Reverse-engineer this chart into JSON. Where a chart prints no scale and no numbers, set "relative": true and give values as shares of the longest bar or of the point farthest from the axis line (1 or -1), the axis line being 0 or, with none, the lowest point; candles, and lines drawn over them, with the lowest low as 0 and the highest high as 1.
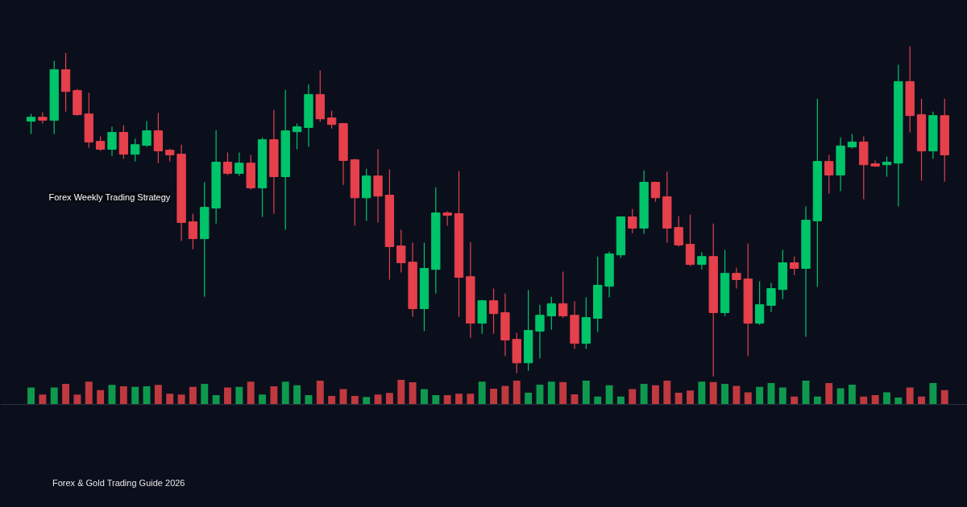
{
  "chart_data": [
    {
      "type": "candlestick",
      "relative": true,
      "title": "Forex Weekly Trading Strategy",
      "subtitle": "Forex & Gold Trading Guide 2026",
      "categories": [
        null,
        null,
        null,
        null,
        null,
        null,
        null,
        null,
        null,
        null,
        null,
        null,
        null,
        null,
        null,
        null,
        null,
        null,
        null,
        null,
        null,
        null,
        null,
        null,
        null,
        null,
        null,
        null,
        null,
        null,
        null,
        null,
        null,
        null,
        null,
        null,
        null,
        null,
        null,
        null,
        null,
        null,
        null,
        null,
        null,
        null,
        null,
        null,
        null,
        null,
        null,
        null,
        null,
        null,
        null,
        null,
        null,
        null,
        null,
        null,
        null,
        null,
        null,
        null,
        null,
        null,
        null,
        null,
        null,
        null,
        null,
        null,
        null,
        null,
        null,
        null,
        null,
        null,
        null,
        null
      ],
      "ohlc": [
        [
          0.773,
          0.795,
          0.734,
          0.785
        ],
        [
          0.785,
          0.8,
          0.766,
          0.776
        ],
        [
          0.776,
          0.956,
          0.734,
          0.929
        ],
        [
          0.929,
          0.98,
          0.802,
          0.863
        ],
        [
          0.866,
          0.871,
          0.79,
          0.793
        ],
        [
          0.795,
          0.859,
          0.693,
          0.71
        ],
        [
          0.712,
          0.727,
          0.683,
          0.688
        ],
        [
          0.688,
          0.756,
          0.668,
          0.739
        ],
        [
          0.739,
          0.761,
          0.659,
          0.673
        ],
        [
          0.673,
          0.72,
          0.651,
          0.702
        ],
        [
          0.7,
          0.773,
          0.695,
          0.744
        ],
        [
          0.744,
          0.798,
          0.646,
          0.683
        ],
        [
          0.685,
          0.69,
          0.651,
          0.671
        ],
        [
          0.673,
          0.702,
          0.41,
          0.466
        ],
        [
          0.468,
          0.493,
          0.385,
          0.417
        ],
        [
          0.417,
          0.588,
          0.241,
          0.512
        ],
        [
          0.51,
          0.746,
          0.463,
          0.649
        ],
        [
          0.649,
          0.678,
          0.61,
          0.615
        ],
        [
          0.615,
          0.678,
          0.607,
          0.646
        ],
        [
          0.646,
          0.671,
          0.566,
          0.571
        ],
        [
          0.571,
          0.724,
          0.483,
          0.717
        ],
        [
          0.717,
          0.807,
          0.493,
          0.605
        ],
        [
          0.605,
          0.868,
          0.444,
          0.744
        ],
        [
          0.741,
          0.766,
          0.688,
          0.756
        ],
        [
          0.754,
          0.885,
          0.695,
          0.854
        ],
        [
          0.854,
          0.927,
          0.771,
          0.78
        ],
        [
          0.783,
          0.805,
          0.751,
          0.763
        ],
        [
          0.766,
          0.768,
          0.58,
          0.654
        ],
        [
          0.656,
          0.659,
          0.456,
          0.541
        ],
        [
          0.541,
          0.629,
          0.471,
          0.607
        ],
        [
          0.607,
          0.688,
          0.466,
          0.546
        ],
        [
          0.549,
          0.627,
          0.293,
          0.393
        ],
        [
          0.395,
          0.444,
          0.315,
          0.344
        ],
        [
          0.346,
          0.405,
          0.18,
          0.205
        ],
        [
          0.205,
          0.405,
          0.137,
          0.327
        ],
        [
          0.324,
          0.573,
          0.251,
          0.495
        ],
        [
          0.495,
          0.5,
          0.456,
          0.488
        ],
        [
          0.493,
          0.622,
          0.18,
          0.3
        ],
        [
          0.302,
          0.407,
          0.117,
          0.161
        ],
        [
          0.161,
          0.232,
          0.129,
          0.229
        ],
        [
          0.229,
          0.266,
          0.129,
          0.19
        ],
        [
          0.193,
          0.251,
          0.061,
          0.11
        ],
        [
          0.112,
          0.132,
          0.01,
          0.041
        ],
        [
          0.041,
          0.261,
          0.017,
          0.139
        ],
        [
          0.137,
          0.217,
          0.054,
          0.185
        ],
        [
          0.183,
          0.241,
          0.141,
          0.22
        ],
        [
          0.22,
          0.317,
          0.178,
          0.183
        ],
        [
          0.185,
          0.227,
          0.083,
          0.1
        ],
        [
          0.1,
          0.239,
          0.083,
          0.178
        ],
        [
          0.176,
          0.363,
          0.134,
          0.276
        ],
        [
          0.273,
          0.378,
          0.239,
          0.371
        ],
        [
          0.368,
          0.485,
          0.359,
          0.483
        ],
        [
          0.483,
          0.507,
          0.434,
          0.449
        ],
        [
          0.449,
          0.624,
          0.432,
          0.588
        ],
        [
          0.588,
          0.59,
          0.529,
          0.541
        ],
        [
          0.544,
          0.62,
          0.405,
          0.449
        ],
        [
          0.451,
          0.485,
          0.393,
          0.398
        ],
        [
          0.4,
          0.49,
          0.334,
          0.339
        ],
        [
          0.339,
          0.376,
          0.324,
          0.363
        ],
        [
          0.363,
          0.463,
          0.0,
          0.193
        ],
        [
          0.193,
          0.383,
          0.183,
          0.312
        ],
        [
          0.312,
          0.329,
          0.266,
          0.293
        ],
        [
          0.295,
          0.402,
          0.061,
          0.161
        ],
        [
          0.161,
          0.288,
          0.156,
          0.217
        ],
        [
          0.215,
          0.283,
          0.195,
          0.266
        ],
        [
          0.263,
          0.383,
          0.234,
          0.344
        ],
        [
          0.344,
          0.363,
          0.307,
          0.327
        ],
        [
          0.327,
          0.515,
          0.12,
          0.473
        ],
        [
          0.471,
          0.841,
          0.271,
          0.651
        ],
        [
          0.651,
          0.671,
          0.554,
          0.61
        ],
        [
          0.61,
          0.724,
          0.561,
          0.698
        ],
        [
          0.695,
          0.734,
          0.69,
          0.71
        ],
        [
          0.71,
          0.727,
          0.537,
          0.641
        ],
        [
          0.644,
          0.654,
          0.634,
          0.637
        ],
        [
          0.641,
          0.666,
          0.605,
          0.649
        ],
        [
          0.646,
          0.944,
          0.515,
          0.893
        ],
        [
          0.893,
          1.0,
          0.739,
          0.79
        ],
        [
          0.793,
          0.841,
          0.593,
          0.683
        ],
        [
          0.683,
          0.802,
          0.659,
          0.79
        ],
        [
          0.79,
          0.841,
          0.59,
          0.671
        ]
      ],
      "colors": [
        "#00c46a",
        "#e5404b",
        "#00c46a",
        "#e5404b",
        "#e5404b",
        "#e5404b",
        "#e5404b",
        "#00c46a",
        "#e5404b",
        "#00c46a",
        "#00c46a",
        "#e5404b",
        "#e5404b",
        "#e5404b",
        "#e5404b",
        "#00c46a",
        "#00c46a",
        "#e5404b",
        "#00c46a",
        "#e5404b",
        "#00c46a",
        "#e5404b",
        "#00c46a",
        "#00c46a",
        "#00c46a",
        "#e5404b",
        "#e5404b",
        "#e5404b",
        "#e5404b",
        "#00c46a",
        "#e5404b",
        "#e5404b",
        "#e5404b",
        "#e5404b",
        "#00c46a",
        "#00c46a",
        "#e5404b",
        "#e5404b",
        "#e5404b",
        "#00c46a",
        "#e5404b",
        "#e5404b",
        "#e5404b",
        "#00c46a",
        "#00c46a",
        "#00c46a",
        "#e5404b",
        "#e5404b",
        "#00c46a",
        "#00c46a",
        "#00c46a",
        "#00c46a",
        "#e5404b",
        "#00c46a",
        "#e5404b",
        "#e5404b",
        "#e5404b",
        "#e5404b",
        "#00c46a",
        "#e5404b",
        "#00c46a",
        "#e5404b",
        "#e5404b",
        "#00c46a",
        "#00c46a",
        "#00c46a",
        "#e5404b",
        "#00c46a",
        "#00c46a",
        "#e5404b",
        "#00c46a",
        "#00c46a",
        "#e5404b",
        "#e5404b",
        "#00c46a",
        "#00c46a",
        "#e5404b",
        "#e5404b",
        "#00c46a",
        "#e5404b"
      ]
    },
    {
      "type": "bar",
      "relative": true,
      "categories": [
        null,
        null,
        null,
        null,
        null,
        null,
        null,
        null,
        null,
        null,
        null,
        null,
        null,
        null,
        null,
        null,
        null,
        null,
        null,
        null,
        null,
        null,
        null,
        null,
        null,
        null,
        null,
        null,
        null,
        null,
        null,
        null,
        null,
        null,
        null,
        null,
        null,
        null,
        null,
        null,
        null,
        null,
        null,
        null,
        null,
        null,
        null,
        null,
        null,
        null,
        null,
        null,
        null,
        null,
        null,
        null,
        null,
        null,
        null,
        null,
        null,
        null,
        null,
        null,
        null,
        null,
        null,
        null,
        null,
        null,
        null,
        null,
        null,
        null,
        null,
        null,
        null,
        null,
        null,
        null
      ],
      "values": [
        0.69,
        0.41,
        0.69,
        0.84,
        0.41,
        0.93,
        0.59,
        0.8,
        0.74,
        0.72,
        0.74,
        0.8,
        0.44,
        0.41,
        0.72,
        0.84,
        0.38,
        0.69,
        0.72,
        0.93,
        0.41,
        0.74,
        0.93,
        0.78,
        0.38,
        0.97,
        0.35,
        0.63,
        0.35,
        0.31,
        0.41,
        0.47,
        1,
        0.9,
        0.63,
        0.38,
        0.38,
        0.44,
        0.44,
        0.93,
        0.64,
        0.76,
        0.97,
        0.48,
        0.81,
        0.93,
        0.91,
        0.42,
        0.97,
        0.33,
        0.78,
        0.33,
        0.63,
        0.84,
        0.78,
        0.97,
        0.48,
        0.57,
        0.93,
        0.91,
        0.84,
        0.76,
        0.5,
        0.72,
        0.87,
        0.69,
        0.33,
        0.97,
        0.33,
        0.87,
        0.66,
        0.81,
        0.33,
        0.38,
        0.5,
        0.29,
        0.69,
        0.33,
        0.87,
        0.59
      ],
      "colors": [
        "#0e9a4e",
        "#c0393f",
        "#0e9a4e",
        "#c0393f",
        "#c0393f",
        "#c0393f",
        "#c0393f",
        "#0e9a4e",
        "#c0393f",
        "#0e9a4e",
        "#0e9a4e",
        "#c0393f",
        "#c0393f",
        "#c0393f",
        "#c0393f",
        "#0e9a4e",
        "#0e9a4e",
        "#c0393f",
        "#0e9a4e",
        "#c0393f",
        "#0e9a4e",
        "#c0393f",
        "#0e9a4e",
        "#0e9a4e",
        "#0e9a4e",
        "#c0393f",
        "#c0393f",
        "#c0393f",
        "#c0393f",
        "#0e9a4e",
        "#c0393f",
        "#c0393f",
        "#c0393f",
        "#c0393f",
        "#0e9a4e",
        "#0e9a4e",
        "#c0393f",
        "#c0393f",
        "#c0393f",
        "#0e9a4e",
        "#c0393f",
        "#c0393f",
        "#c0393f",
        "#0e9a4e",
        "#0e9a4e",
        "#0e9a4e",
        "#c0393f",
        "#c0393f",
        "#0e9a4e",
        "#0e9a4e",
        "#0e9a4e",
        "#0e9a4e",
        "#c0393f",
        "#0e9a4e",
        "#c0393f",
        "#c0393f",
        "#c0393f",
        "#c0393f",
        "#0e9a4e",
        "#c0393f",
        "#0e9a4e",
        "#c0393f",
        "#c0393f",
        "#0e9a4e",
        "#0e9a4e",
        "#0e9a4e",
        "#c0393f",
        "#0e9a4e",
        "#0e9a4e",
        "#c0393f",
        "#0e9a4e",
        "#0e9a4e",
        "#c0393f",
        "#c0393f",
        "#0e9a4e",
        "#0e9a4e",
        "#c0393f",
        "#c0393f",
        "#0e9a4e",
        "#c0393f"
      ]
    }
  ]
}
